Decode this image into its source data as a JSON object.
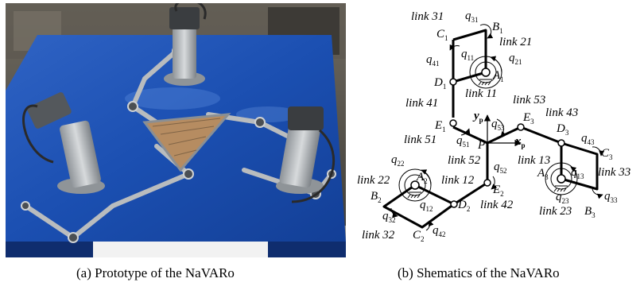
{
  "captions": {
    "a": "(a)  Prototype of the NaVARo",
    "b": "(b)  Shematics of the NaVARo"
  },
  "schematic_labels": [
    {
      "id": "link31",
      "text": "link 31"
    },
    {
      "id": "q31",
      "text": "q",
      "sub": "31"
    },
    {
      "id": "B1",
      "text": "B",
      "sub": "1"
    },
    {
      "id": "C1",
      "text": "C",
      "sub": "1"
    },
    {
      "id": "link21",
      "text": "link 21"
    },
    {
      "id": "q11",
      "text": "q",
      "sub": "11"
    },
    {
      "id": "q21",
      "text": "q",
      "sub": "21"
    },
    {
      "id": "q41",
      "text": "q",
      "sub": "41"
    },
    {
      "id": "A1",
      "text": "A",
      "sub": "1"
    },
    {
      "id": "D1",
      "text": "D",
      "sub": "1"
    },
    {
      "id": "link11",
      "text": "link 11"
    },
    {
      "id": "link41",
      "text": "link 41"
    },
    {
      "id": "link53",
      "text": "link 53"
    },
    {
      "id": "link43",
      "text": "link 43"
    },
    {
      "id": "yp",
      "text": "y",
      "sub": "p"
    },
    {
      "id": "q53",
      "text": "q",
      "sub": "53"
    },
    {
      "id": "E3",
      "text": "E",
      "sub": "3"
    },
    {
      "id": "D3",
      "text": "D",
      "sub": "3"
    },
    {
      "id": "E1",
      "text": "E",
      "sub": "1"
    },
    {
      "id": "q43",
      "text": "q",
      "sub": "43"
    },
    {
      "id": "link51",
      "text": "link 51"
    },
    {
      "id": "q51",
      "text": "q",
      "sub": "51"
    },
    {
      "id": "P",
      "text": "P"
    },
    {
      "id": "xp",
      "text": "x",
      "sub": "p"
    },
    {
      "id": "C3",
      "text": "C",
      "sub": "3"
    },
    {
      "id": "q22",
      "text": "q",
      "sub": "22"
    },
    {
      "id": "link52",
      "text": "link 52"
    },
    {
      "id": "link13",
      "text": "link 13"
    },
    {
      "id": "q52",
      "text": "q",
      "sub": "52"
    },
    {
      "id": "A3",
      "text": "A",
      "sub": "3"
    },
    {
      "id": "q13",
      "text": "q",
      "sub": "13"
    },
    {
      "id": "link33",
      "text": "link 33"
    },
    {
      "id": "link22",
      "text": "link 22"
    },
    {
      "id": "A2",
      "text": "A",
      "sub": "2"
    },
    {
      "id": "link12",
      "text": "link 12"
    },
    {
      "id": "E2",
      "text": "E",
      "sub": "2"
    },
    {
      "id": "B2",
      "text": "B",
      "sub": "2"
    },
    {
      "id": "q12",
      "text": "q",
      "sub": "12"
    },
    {
      "id": "D2",
      "text": "D",
      "sub": "2"
    },
    {
      "id": "link42",
      "text": "link 42"
    },
    {
      "id": "q23",
      "text": "q",
      "sub": "23"
    },
    {
      "id": "q33",
      "text": "q",
      "sub": "33"
    },
    {
      "id": "q32",
      "text": "q",
      "sub": "32"
    },
    {
      "id": "link23",
      "text": "link 23"
    },
    {
      "id": "B3",
      "text": "B",
      "sub": "3"
    },
    {
      "id": "link32",
      "text": "link 32"
    },
    {
      "id": "C2",
      "text": "C",
      "sub": "2"
    },
    {
      "id": "q42",
      "text": "q",
      "sub": "42"
    }
  ]
}
